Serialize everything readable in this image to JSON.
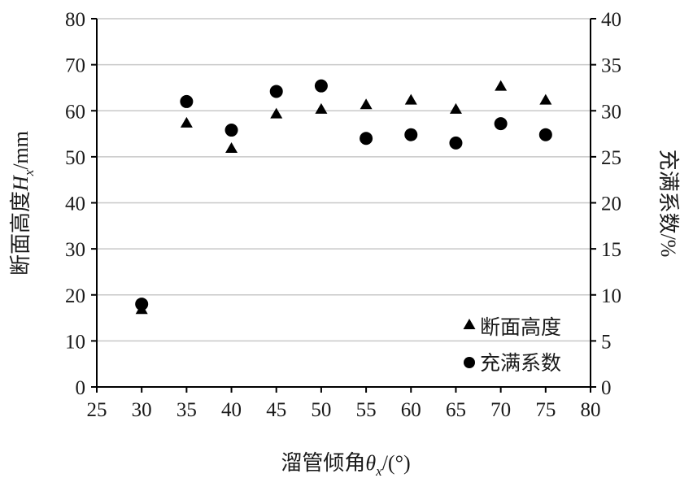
{
  "chart_data": {
    "type": "scatter",
    "x_axis": {
      "label_prefix": "溜管倾角",
      "label_symbol": "θ",
      "label_subscript": "x",
      "label_suffix": "/(°)",
      "range": [
        25,
        80
      ],
      "ticks": [
        25,
        30,
        35,
        40,
        45,
        50,
        55,
        60,
        65,
        70,
        75,
        80
      ]
    },
    "y_axis_left": {
      "label_prefix": "断面高度",
      "label_symbol": "H",
      "label_subscript": "x",
      "label_suffix": "/mm",
      "range": [
        0,
        80
      ],
      "ticks": [
        0,
        10,
        20,
        30,
        40,
        50,
        60,
        70,
        80
      ]
    },
    "y_axis_right": {
      "label": "充满系数/%",
      "range": [
        0,
        40
      ],
      "ticks": [
        0,
        5,
        10,
        15,
        20,
        25,
        30,
        35,
        40
      ]
    },
    "series": [
      {
        "name": "断面高度",
        "marker": "triangle",
        "axis": "left",
        "x": [
          30,
          35,
          40,
          45,
          50,
          55,
          60,
          65,
          70,
          75
        ],
        "y": [
          17,
          57.5,
          52,
          59.5,
          60.5,
          61.5,
          62.5,
          60.5,
          65.5,
          62.5
        ]
      },
      {
        "name": "充满系数",
        "marker": "circle",
        "axis": "right",
        "x": [
          30,
          35,
          40,
          45,
          50,
          55,
          60,
          65,
          70,
          75
        ],
        "y": [
          9,
          31,
          27.9,
          32.1,
          32.7,
          27,
          27.4,
          26.5,
          28.6,
          27.4
        ]
      }
    ],
    "legend": {
      "position": "bottom-right",
      "entries": [
        {
          "label": "断面高度",
          "marker": "triangle"
        },
        {
          "label": "充满系数",
          "marker": "circle"
        }
      ]
    },
    "grid": {
      "horizontal": true,
      "vertical": false
    },
    "colors": {
      "marker": "#000000",
      "grid": "#c8c8c8",
      "axis": "#000000"
    }
  }
}
